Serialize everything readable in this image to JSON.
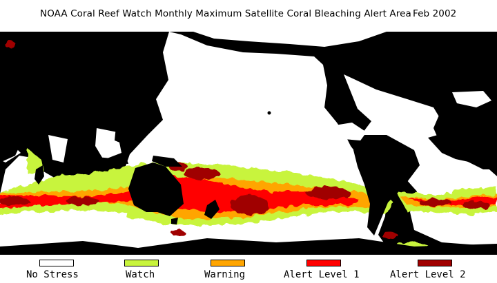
{
  "title": {
    "main": "NOAA Coral Reef Watch Monthly Maximum Satellite Coral Bleaching Alert Area",
    "date": "Feb 2002"
  },
  "map": {
    "land_color": "#000000",
    "ocean_color": "#ffffff"
  },
  "legend": [
    {
      "label": "No Stress",
      "color": "#ffffff"
    },
    {
      "label": "Watch",
      "color": "#c8f43c"
    },
    {
      "label": "Warning",
      "color": "#ffa500"
    },
    {
      "label": "Alert Level 1",
      "color": "#ff0000"
    },
    {
      "label": "Alert Level 2",
      "color": "#a00000"
    }
  ]
}
